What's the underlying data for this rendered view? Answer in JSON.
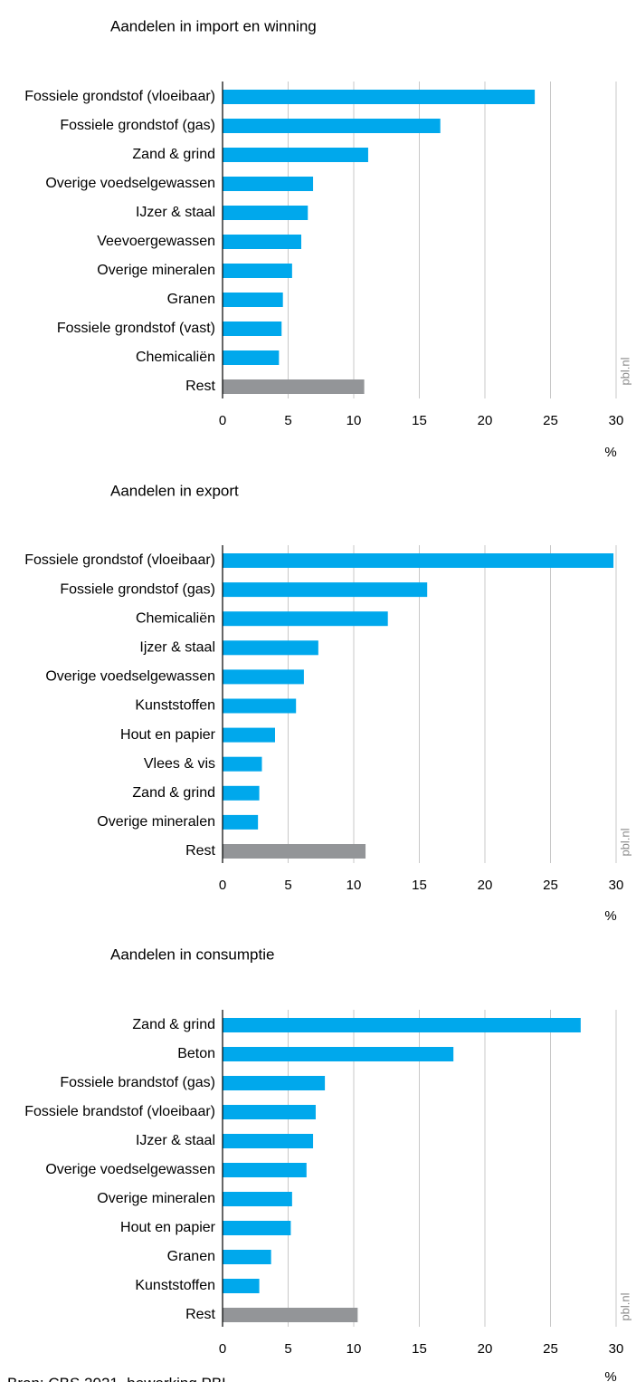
{
  "source_note": "Bron: CBS 2021, bewerking PBL",
  "watermark": "pbl.nl",
  "colors": {
    "bar": "#00a8ec",
    "rest": "#939598",
    "grid": "#c8c8c8",
    "axis": "#000000"
  },
  "chart_data": [
    {
      "type": "bar",
      "orientation": "horizontal",
      "title": "Aandelen in import en winning",
      "unit": "%",
      "xlim": [
        0,
        30
      ],
      "xticks": [
        0,
        5,
        10,
        15,
        20,
        25,
        30
      ],
      "grid": true,
      "categories": [
        "Fossiele grondstof (vloeibaar)",
        "Fossiele grondstof (gas)",
        "Zand & grind",
        "Overige voedselgewassen",
        "IJzer & staal",
        "Veevoergewassen",
        "Overige mineralen",
        "Granen",
        "Fossiele grondstof (vast)",
        "Chemicaliën",
        "Rest"
      ],
      "values": [
        23.8,
        16.6,
        11.1,
        6.9,
        6.5,
        6.0,
        5.3,
        4.6,
        4.5,
        4.3,
        10.8
      ]
    },
    {
      "type": "bar",
      "orientation": "horizontal",
      "title": "Aandelen in export",
      "unit": "%",
      "xlim": [
        0,
        30
      ],
      "xticks": [
        0,
        5,
        10,
        15,
        20,
        25,
        30
      ],
      "grid": true,
      "categories": [
        "Fossiele grondstof (vloeibaar)",
        "Fossiele grondstof (gas)",
        "Chemicaliën",
        "Ijzer & staal",
        "Overige voedselgewassen",
        "Kunststoffen",
        "Hout en papier",
        "Vlees & vis",
        "Zand & grind",
        "Overige mineralen",
        "Rest"
      ],
      "values": [
        29.8,
        15.6,
        12.6,
        7.3,
        6.2,
        5.6,
        4.0,
        3.0,
        2.8,
        2.7,
        10.9
      ]
    },
    {
      "type": "bar",
      "orientation": "horizontal",
      "title": "Aandelen in consumptie",
      "unit": "%",
      "xlim": [
        0,
        30
      ],
      "xticks": [
        0,
        5,
        10,
        15,
        20,
        25,
        30
      ],
      "grid": true,
      "categories": [
        "Zand & grind",
        "Beton",
        "Fossiele brandstof (gas)",
        "Fossiele brandstof (vloeibaar)",
        "IJzer & staal",
        "Overige voedselgewassen",
        "Overige mineralen",
        "Hout en papier",
        "Granen",
        "Kunststoffen",
        "Rest"
      ],
      "values": [
        27.3,
        17.6,
        7.8,
        7.1,
        6.9,
        6.4,
        5.3,
        5.2,
        3.7,
        2.8,
        10.3
      ]
    }
  ]
}
